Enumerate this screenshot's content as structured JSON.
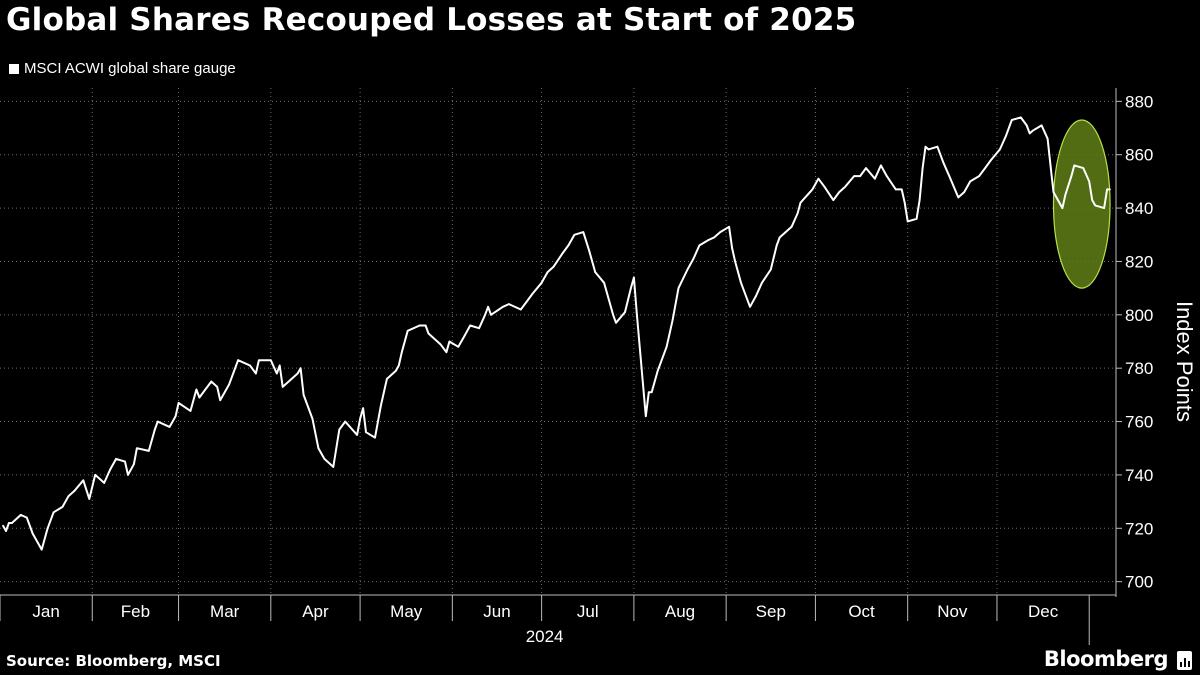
{
  "title": "Global Shares Recouped Losses at Start of 2025",
  "legend_label": "MSCI ACWI global share gauge",
  "source": "Source: Bloomberg, MSCI",
  "brand": "Bloomberg",
  "colors": {
    "background": "#000000",
    "line": "#ffffff",
    "grid": "#6e6e6e",
    "highlight_fill": "#5f7f16",
    "highlight_stroke": "#b8e04a"
  },
  "chart_data": {
    "type": "line",
    "title": "Global Shares Recouped Losses at Start of 2025",
    "ylabel": "Index Points",
    "xlabel": "",
    "x_year_label": "2024",
    "y_axis_side": "right",
    "ylim": [
      695,
      885
    ],
    "yticks": [
      700,
      720,
      740,
      760,
      780,
      800,
      820,
      840,
      860,
      880
    ],
    "grid": true,
    "legend_position": "top-left",
    "x_ticks": [
      "Jan",
      "Feb",
      "Mar",
      "Apr",
      "May",
      "Jun",
      "Jul",
      "Aug",
      "Sep",
      "Oct",
      "Nov",
      "Dec"
    ],
    "highlight": {
      "shape": "ellipse",
      "date_range": [
        "2024-12-20",
        "2025-01-08"
      ],
      "value_range": [
        810,
        873
      ]
    },
    "series": [
      {
        "name": "MSCI ACWI global share gauge",
        "points": [
          [
            "2024-01-02",
            721
          ],
          [
            "2024-01-03",
            719
          ],
          [
            "2024-01-04",
            722
          ],
          [
            "2024-01-05",
            722
          ],
          [
            "2024-01-08",
            725
          ],
          [
            "2024-01-10",
            724
          ],
          [
            "2024-01-12",
            718
          ],
          [
            "2024-01-15",
            712
          ],
          [
            "2024-01-17",
            720
          ],
          [
            "2024-01-19",
            726
          ],
          [
            "2024-01-22",
            728
          ],
          [
            "2024-01-24",
            732
          ],
          [
            "2024-01-26",
            734
          ],
          [
            "2024-01-29",
            738
          ],
          [
            "2024-01-31",
            731
          ],
          [
            "2024-02-02",
            740
          ],
          [
            "2024-02-05",
            737
          ],
          [
            "2024-02-07",
            742
          ],
          [
            "2024-02-09",
            746
          ],
          [
            "2024-02-12",
            745
          ],
          [
            "2024-02-13",
            740
          ],
          [
            "2024-02-15",
            744
          ],
          [
            "2024-02-16",
            750
          ],
          [
            "2024-02-20",
            749
          ],
          [
            "2024-02-22",
            757
          ],
          [
            "2024-02-23",
            760
          ],
          [
            "2024-02-27",
            758
          ],
          [
            "2024-02-29",
            762
          ],
          [
            "2024-03-01",
            767
          ],
          [
            "2024-03-05",
            764
          ],
          [
            "2024-03-07",
            772
          ],
          [
            "2024-03-08",
            769
          ],
          [
            "2024-03-12",
            775
          ],
          [
            "2024-03-14",
            773
          ],
          [
            "2024-03-15",
            768
          ],
          [
            "2024-03-18",
            774
          ],
          [
            "2024-03-21",
            783
          ],
          [
            "2024-03-25",
            781
          ],
          [
            "2024-03-27",
            778
          ],
          [
            "2024-03-28",
            783
          ],
          [
            "2024-04-01",
            783
          ],
          [
            "2024-04-03",
            778
          ],
          [
            "2024-04-04",
            781
          ],
          [
            "2024-04-05",
            773
          ],
          [
            "2024-04-08",
            776
          ],
          [
            "2024-04-10",
            778
          ],
          [
            "2024-04-11",
            780
          ],
          [
            "2024-04-12",
            770
          ],
          [
            "2024-04-15",
            761
          ],
          [
            "2024-04-17",
            750
          ],
          [
            "2024-04-19",
            746
          ],
          [
            "2024-04-22",
            743
          ],
          [
            "2024-04-24",
            757
          ],
          [
            "2024-04-26",
            760
          ],
          [
            "2024-04-30",
            755
          ],
          [
            "2024-05-01",
            761
          ],
          [
            "2024-05-02",
            765
          ],
          [
            "2024-05-03",
            756
          ],
          [
            "2024-05-06",
            754
          ],
          [
            "2024-05-08",
            766
          ],
          [
            "2024-05-10",
            776
          ],
          [
            "2024-05-13",
            779
          ],
          [
            "2024-05-14",
            781
          ],
          [
            "2024-05-15",
            786
          ],
          [
            "2024-05-17",
            794
          ],
          [
            "2024-05-21",
            796
          ],
          [
            "2024-05-23",
            796
          ],
          [
            "2024-05-24",
            793
          ],
          [
            "2024-05-28",
            789
          ],
          [
            "2024-05-30",
            786
          ],
          [
            "2024-05-31",
            790
          ],
          [
            "2024-06-03",
            788
          ],
          [
            "2024-06-05",
            792
          ],
          [
            "2024-06-07",
            796
          ],
          [
            "2024-06-10",
            795
          ],
          [
            "2024-06-12",
            800
          ],
          [
            "2024-06-13",
            803
          ],
          [
            "2024-06-14",
            800
          ],
          [
            "2024-06-18",
            803
          ],
          [
            "2024-06-20",
            804
          ],
          [
            "2024-06-24",
            802
          ],
          [
            "2024-06-26",
            805
          ],
          [
            "2024-06-28",
            808
          ],
          [
            "2024-07-01",
            812
          ],
          [
            "2024-07-03",
            816
          ],
          [
            "2024-07-05",
            818
          ],
          [
            "2024-07-08",
            823
          ],
          [
            "2024-07-10",
            826
          ],
          [
            "2024-07-11",
            828
          ],
          [
            "2024-07-12",
            830
          ],
          [
            "2024-07-15",
            831
          ],
          [
            "2024-07-17",
            824
          ],
          [
            "2024-07-19",
            816
          ],
          [
            "2024-07-22",
            812
          ],
          [
            "2024-07-24",
            804
          ],
          [
            "2024-07-25",
            800
          ],
          [
            "2024-07-26",
            797
          ],
          [
            "2024-07-29",
            801
          ],
          [
            "2024-07-31",
            810
          ],
          [
            "2024-08-01",
            814
          ],
          [
            "2024-08-02",
            800
          ],
          [
            "2024-08-05",
            762
          ],
          [
            "2024-08-06",
            771
          ],
          [
            "2024-08-07",
            771
          ],
          [
            "2024-08-09",
            779
          ],
          [
            "2024-08-12",
            788
          ],
          [
            "2024-08-14",
            798
          ],
          [
            "2024-08-16",
            810
          ],
          [
            "2024-08-19",
            817
          ],
          [
            "2024-08-21",
            821
          ],
          [
            "2024-08-23",
            826
          ],
          [
            "2024-08-26",
            828
          ],
          [
            "2024-08-28",
            829
          ],
          [
            "2024-08-30",
            831
          ],
          [
            "2024-09-02",
            833
          ],
          [
            "2024-09-03",
            825
          ],
          [
            "2024-09-04",
            820
          ],
          [
            "2024-09-06",
            812
          ],
          [
            "2024-09-09",
            803
          ],
          [
            "2024-09-11",
            807
          ],
          [
            "2024-09-13",
            812
          ],
          [
            "2024-09-16",
            817
          ],
          [
            "2024-09-18",
            826
          ],
          [
            "2024-09-19",
            829
          ],
          [
            "2024-09-20",
            830
          ],
          [
            "2024-09-23",
            833
          ],
          [
            "2024-09-25",
            838
          ],
          [
            "2024-09-26",
            842
          ],
          [
            "2024-09-30",
            847
          ],
          [
            "2024-10-01",
            849
          ],
          [
            "2024-10-02",
            851
          ],
          [
            "2024-10-04",
            848
          ],
          [
            "2024-10-07",
            843
          ],
          [
            "2024-10-09",
            846
          ],
          [
            "2024-10-11",
            848
          ],
          [
            "2024-10-14",
            852
          ],
          [
            "2024-10-16",
            852
          ],
          [
            "2024-10-18",
            855
          ],
          [
            "2024-10-21",
            851
          ],
          [
            "2024-10-23",
            856
          ],
          [
            "2024-10-25",
            852
          ],
          [
            "2024-10-28",
            847
          ],
          [
            "2024-10-30",
            847
          ],
          [
            "2024-10-31",
            842
          ],
          [
            "2024-11-01",
            835
          ],
          [
            "2024-11-04",
            836
          ],
          [
            "2024-11-05",
            843
          ],
          [
            "2024-11-06",
            855
          ],
          [
            "2024-11-07",
            863
          ],
          [
            "2024-11-08",
            862
          ],
          [
            "2024-11-11",
            863
          ],
          [
            "2024-11-13",
            857
          ],
          [
            "2024-11-15",
            852
          ],
          [
            "2024-11-18",
            844
          ],
          [
            "2024-11-20",
            846
          ],
          [
            "2024-11-22",
            850
          ],
          [
            "2024-11-25",
            852
          ],
          [
            "2024-11-27",
            855
          ],
          [
            "2024-11-29",
            858
          ],
          [
            "2024-12-02",
            862
          ],
          [
            "2024-12-04",
            867
          ],
          [
            "2024-12-06",
            873
          ],
          [
            "2024-12-09",
            874
          ],
          [
            "2024-12-11",
            871
          ],
          [
            "2024-12-12",
            868
          ],
          [
            "2024-12-13",
            869
          ],
          [
            "2024-12-16",
            871
          ],
          [
            "2024-12-18",
            866
          ],
          [
            "2024-12-19",
            856
          ],
          [
            "2024-12-20",
            846
          ],
          [
            "2024-12-23",
            840
          ],
          [
            "2024-12-24",
            845
          ],
          [
            "2024-12-26",
            852
          ],
          [
            "2024-12-27",
            856
          ],
          [
            "2024-12-30",
            855
          ],
          [
            "2025-01-01",
            850
          ],
          [
            "2025-01-02",
            843
          ],
          [
            "2025-01-03",
            841
          ],
          [
            "2025-01-06",
            840
          ],
          [
            "2025-01-07",
            847
          ],
          [
            "2025-01-08",
            847
          ]
        ]
      }
    ]
  }
}
